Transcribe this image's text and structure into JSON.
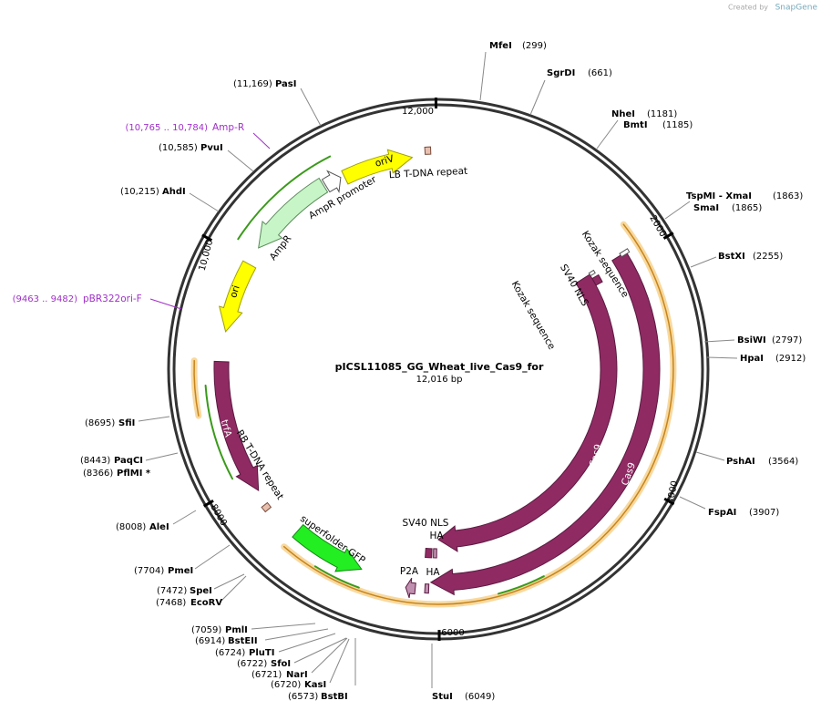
{
  "header": {
    "created_by": "Created by",
    "brand": "SnapGene"
  },
  "map": {
    "name": "pICSL11085_GG_Wheat_live_Cas9_for",
    "length": "12,016 bp",
    "ticks": [
      "12,000",
      "2000",
      "4000",
      "6000",
      "8000",
      "10,000"
    ],
    "sites": [
      {
        "name": "MfeI",
        "position": "(299)"
      },
      {
        "name": "SgrDI",
        "position": "(661)"
      },
      {
        "name": "NheI",
        "position": "(1181)"
      },
      {
        "name": "BmtI",
        "position": "(1185)"
      },
      {
        "name": "TspMI - XmaI",
        "position": "(1863)"
      },
      {
        "name": "SmaI",
        "position": "(1865)"
      },
      {
        "name": "BstXI",
        "position": "(2255)"
      },
      {
        "name": "BsiWI",
        "position": "(2797)"
      },
      {
        "name": "HpaI",
        "position": "(2912)"
      },
      {
        "name": "PshAI",
        "position": "(3564)"
      },
      {
        "name": "FspAI",
        "position": "(3907)"
      },
      {
        "name": "StuI",
        "position": "(6049)"
      },
      {
        "name": "BstBI",
        "position": "(6573)"
      },
      {
        "name": "KasI",
        "position": "(6720)"
      },
      {
        "name": "NarI",
        "position": "(6721)"
      },
      {
        "name": "SfoI",
        "position": "(6722)"
      },
      {
        "name": "PluTI",
        "position": "(6724)"
      },
      {
        "name": "BstEII",
        "position": "(6914)"
      },
      {
        "name": "PmlI",
        "position": "(7059)"
      },
      {
        "name": "EcoRV",
        "position": "(7468)"
      },
      {
        "name": "SpeI",
        "position": "(7472)"
      },
      {
        "name": "PmeI",
        "position": "(7704)"
      },
      {
        "name": "AleI",
        "position": "(8008)"
      },
      {
        "name": "PflMI *",
        "position": "(8366)"
      },
      {
        "name": "PaqCI",
        "position": "(8443)"
      },
      {
        "name": "SfiI",
        "position": "(8695)"
      },
      {
        "name": "AhdI",
        "position": "(10,215)"
      },
      {
        "name": "PvuI",
        "position": "(10,585)"
      },
      {
        "name": "PasI",
        "position": "(11,169)"
      }
    ],
    "primers": [
      {
        "range": "(10,765 .. 10,784)",
        "name": "Amp-R"
      },
      {
        "range": "(9463 .. 9482)",
        "name": "pBR322ori-F"
      }
    ],
    "features": [
      "oriV",
      "LB T-DNA repeat",
      "AmpR promoter",
      "AmpR",
      "ori",
      "Kozak sequence",
      "SV40 NLS",
      "Kozak sequence",
      "Cas9",
      "Cas9",
      "trfA",
      "RB T-DNA repeat",
      "superfolder GFP",
      "SV40 NLS",
      "HA",
      "P2A",
      "HA"
    ]
  }
}
